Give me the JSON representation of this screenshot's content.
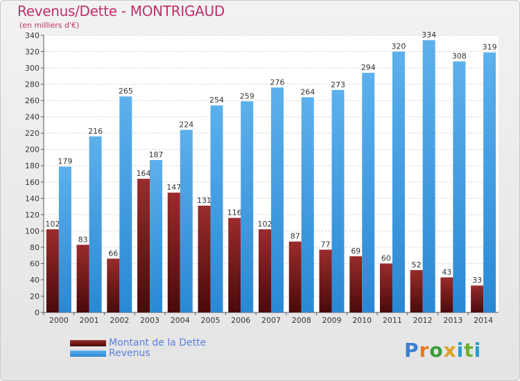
{
  "header": {
    "title": "Revenus/Dette - MONTRIGAUD",
    "subtitle": "(en milliers d'€)"
  },
  "chart_data": {
    "type": "bar",
    "categories": [
      "2000",
      "2001",
      "2002",
      "2003",
      "2004",
      "2005",
      "2006",
      "2007",
      "2008",
      "2009",
      "2010",
      "2011",
      "2012",
      "2013",
      "2014"
    ],
    "series": [
      {
        "name": "Montant de la Dette",
        "color": "#7a1c1c",
        "values": [
          102,
          83,
          66,
          164,
          147,
          131,
          116,
          102,
          87,
          77,
          69,
          60,
          52,
          43,
          33
        ]
      },
      {
        "name": "Revenus",
        "color": "#3d9ae0",
        "values": [
          179,
          216,
          265,
          187,
          224,
          254,
          259,
          276,
          264,
          273,
          294,
          320,
          334,
          308,
          319
        ]
      }
    ],
    "ylim": [
      0,
      340
    ],
    "yticks": [
      0,
      20,
      40,
      60,
      80,
      100,
      120,
      140,
      160,
      180,
      200,
      220,
      240,
      260,
      280,
      300,
      320,
      340
    ],
    "grid": true,
    "legend": "bottom-left"
  },
  "logo": {
    "letters": [
      "P",
      "r",
      "o",
      "x",
      "i",
      "t",
      "i"
    ]
  }
}
